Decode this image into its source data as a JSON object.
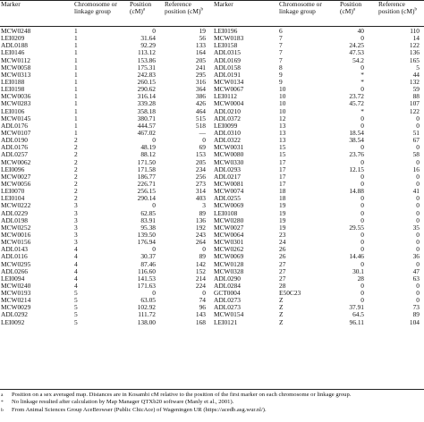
{
  "header": {
    "marker": "Marker",
    "chromosome": "Chromosome or\nlinkage group",
    "position": "Position\n(cM)",
    "position_sup": "a",
    "reference": "Reference\nposition (cM)",
    "reference_sup": "b"
  },
  "left_rows": [
    [
      "MCW0248",
      "1",
      "0",
      "19"
    ],
    [
      "LEI0209",
      "1",
      "31.64",
      "56"
    ],
    [
      "ADL0188",
      "1",
      "92.29",
      "133"
    ],
    [
      "LEI0146",
      "1",
      "113.12",
      "164"
    ],
    [
      "MCW0112",
      "1",
      "153.86",
      "205"
    ],
    [
      "MCW0058",
      "1",
      "175.31",
      "241"
    ],
    [
      "MCW0313",
      "1",
      "242.83",
      "295"
    ],
    [
      "LEI0188",
      "1",
      "260.15",
      "316"
    ],
    [
      "LEI0198",
      "1",
      "290.62",
      "364"
    ],
    [
      "MCW0036",
      "1",
      "316.14",
      "386"
    ],
    [
      "MCW0283",
      "1",
      "339.28",
      "426"
    ],
    [
      "LEI0106",
      "1",
      "358.18",
      "464"
    ],
    [
      "MCW0145",
      "1",
      "380.71",
      "515"
    ],
    [
      "ADL0176",
      "1",
      "444.57",
      "518"
    ],
    [
      "MCW0107",
      "1",
      "467.02",
      "—"
    ],
    [
      "ADL0190",
      "2",
      "0",
      "0"
    ],
    [
      "ADL0176",
      "2",
      "48.19",
      "69"
    ],
    [
      "ADL0257",
      "2",
      "88.12",
      "153"
    ],
    [
      "MCW0062",
      "2",
      "171.50",
      "205"
    ],
    [
      "LEI0096",
      "2",
      "171.58",
      "234"
    ],
    [
      "MCW0027",
      "2",
      "186.77",
      "256"
    ],
    [
      "MCW0056",
      "2",
      "226.71",
      "273"
    ],
    [
      "LEI0070",
      "2",
      "256.15",
      "314"
    ],
    [
      "LEI0104",
      "2",
      "290.14",
      "403"
    ],
    [
      "MCW0222",
      "3",
      "0",
      "3"
    ],
    [
      "ADL0229",
      "3",
      "62.85",
      "89"
    ],
    [
      "ADL0198",
      "3",
      "83.91",
      "136"
    ],
    [
      "MCW0252",
      "3",
      "95.38",
      "192"
    ],
    [
      "MCW0016",
      "3",
      "139.50",
      "243"
    ],
    [
      "MCW0156",
      "3",
      "176.94",
      "264"
    ],
    [
      "ADL0143",
      "4",
      "0",
      "0"
    ],
    [
      "ADL0116",
      "4",
      "30.37",
      "89"
    ],
    [
      "MCW0295",
      "4",
      "87.46",
      "142"
    ],
    [
      "ADL0266",
      "4",
      "116.60",
      "152"
    ],
    [
      "LEI0094",
      "4",
      "141.53",
      "214"
    ],
    [
      "MCW0240",
      "4",
      "171.63",
      "224"
    ],
    [
      "MCW0193",
      "5",
      "0",
      "0"
    ],
    [
      "MCW0214",
      "5",
      "63.05",
      "74"
    ],
    [
      "MCW0029",
      "5",
      "102.92",
      "96"
    ],
    [
      "ADL0292",
      "5",
      "111.72",
      "143"
    ],
    [
      "LEI0092",
      "5",
      "138.00",
      "168"
    ]
  ],
  "right_rows": [
    [
      "LEI0196",
      "6",
      "40",
      "110"
    ],
    [
      "MCW0183",
      "7",
      "0",
      "14"
    ],
    [
      "LEI0158",
      "7",
      "24.25",
      "122"
    ],
    [
      "ADL0315",
      "7",
      "47.53",
      "136"
    ],
    [
      "ADL0169",
      "7",
      "54.2",
      "165"
    ],
    [
      "ADL0158",
      "8",
      "0",
      "5"
    ],
    [
      "ADL0191",
      "9",
      "*",
      "44"
    ],
    [
      "MCW0134",
      "9",
      "*",
      "132"
    ],
    [
      "MCW0067",
      "10",
      "0",
      "59"
    ],
    [
      "LEI0112",
      "10",
      "23.72",
      "88"
    ],
    [
      "MCW0004",
      "10",
      "45.72",
      "107"
    ],
    [
      "ADL0210",
      "10",
      "*",
      "122"
    ],
    [
      "ADL0372",
      "12",
      "0",
      "0"
    ],
    [
      "LEI0099",
      "13",
      "0",
      "0"
    ],
    [
      "ADL0310",
      "13",
      "18.54",
      "51"
    ],
    [
      "ADL0322",
      "13",
      "38.54",
      "67"
    ],
    [
      "MCW0031",
      "15",
      "0",
      "0"
    ],
    [
      "MCW0080",
      "15",
      "23.76",
      "58"
    ],
    [
      "MCW0330",
      "17",
      "0",
      "0"
    ],
    [
      "ADL0293",
      "17",
      "12.15",
      "16"
    ],
    [
      "ADL0217",
      "17",
      "0",
      "0"
    ],
    [
      "MCW0081",
      "17",
      "0",
      "0"
    ],
    [
      "MCW0074",
      "18",
      "14.88",
      "41"
    ],
    [
      "ADL0255",
      "18",
      "0",
      "0"
    ],
    [
      "MCW0069",
      "19",
      "0",
      "0"
    ],
    [
      "LEI0108",
      "19",
      "0",
      "0"
    ],
    [
      "MCW0280",
      "19",
      "0",
      "0"
    ],
    [
      "MCW0027",
      "19",
      "29.55",
      "35"
    ],
    [
      "MCW0064",
      "23",
      "0",
      "0"
    ],
    [
      "MCW0301",
      "24",
      "0",
      "0"
    ],
    [
      "MCW0262",
      "26",
      "0",
      "0"
    ],
    [
      "MCW0069",
      "26",
      "14.46",
      "36"
    ],
    [
      "MCW0128",
      "27",
      "0",
      "0"
    ],
    [
      "MCW0328",
      "27",
      "30.1",
      "47"
    ],
    [
      "ADL0290",
      "27",
      "28",
      "63"
    ],
    [
      "ADL0284",
      "28",
      "0",
      "0"
    ],
    [
      "GCT0004",
      "E50C23",
      "0",
      "0"
    ],
    [
      "ADL0273",
      "Z",
      "0",
      "0"
    ],
    [
      "ADL0273",
      "Z",
      "37.91",
      "73"
    ],
    [
      "MCW0154",
      "Z",
      "64.5",
      "89"
    ],
    [
      "LEI0121",
      "Z",
      "96.11",
      "104"
    ]
  ],
  "notes": [
    {
      "sym": "a",
      "text": "Position on a sex averaged map. Distances are in Kosambi cM relative to the position of the first marker on each chromosome or linkage group."
    },
    {
      "sym": "*",
      "text": "No linkage resulted after calculation by Map Manager QTXb20 software (Manly et al., 2001)."
    },
    {
      "sym": "b",
      "text": "From Animal Sciences Group AceBrowser (Public ChicAce) of Wageningen UR (https://acedb.asg.wur.nl/)."
    }
  ]
}
